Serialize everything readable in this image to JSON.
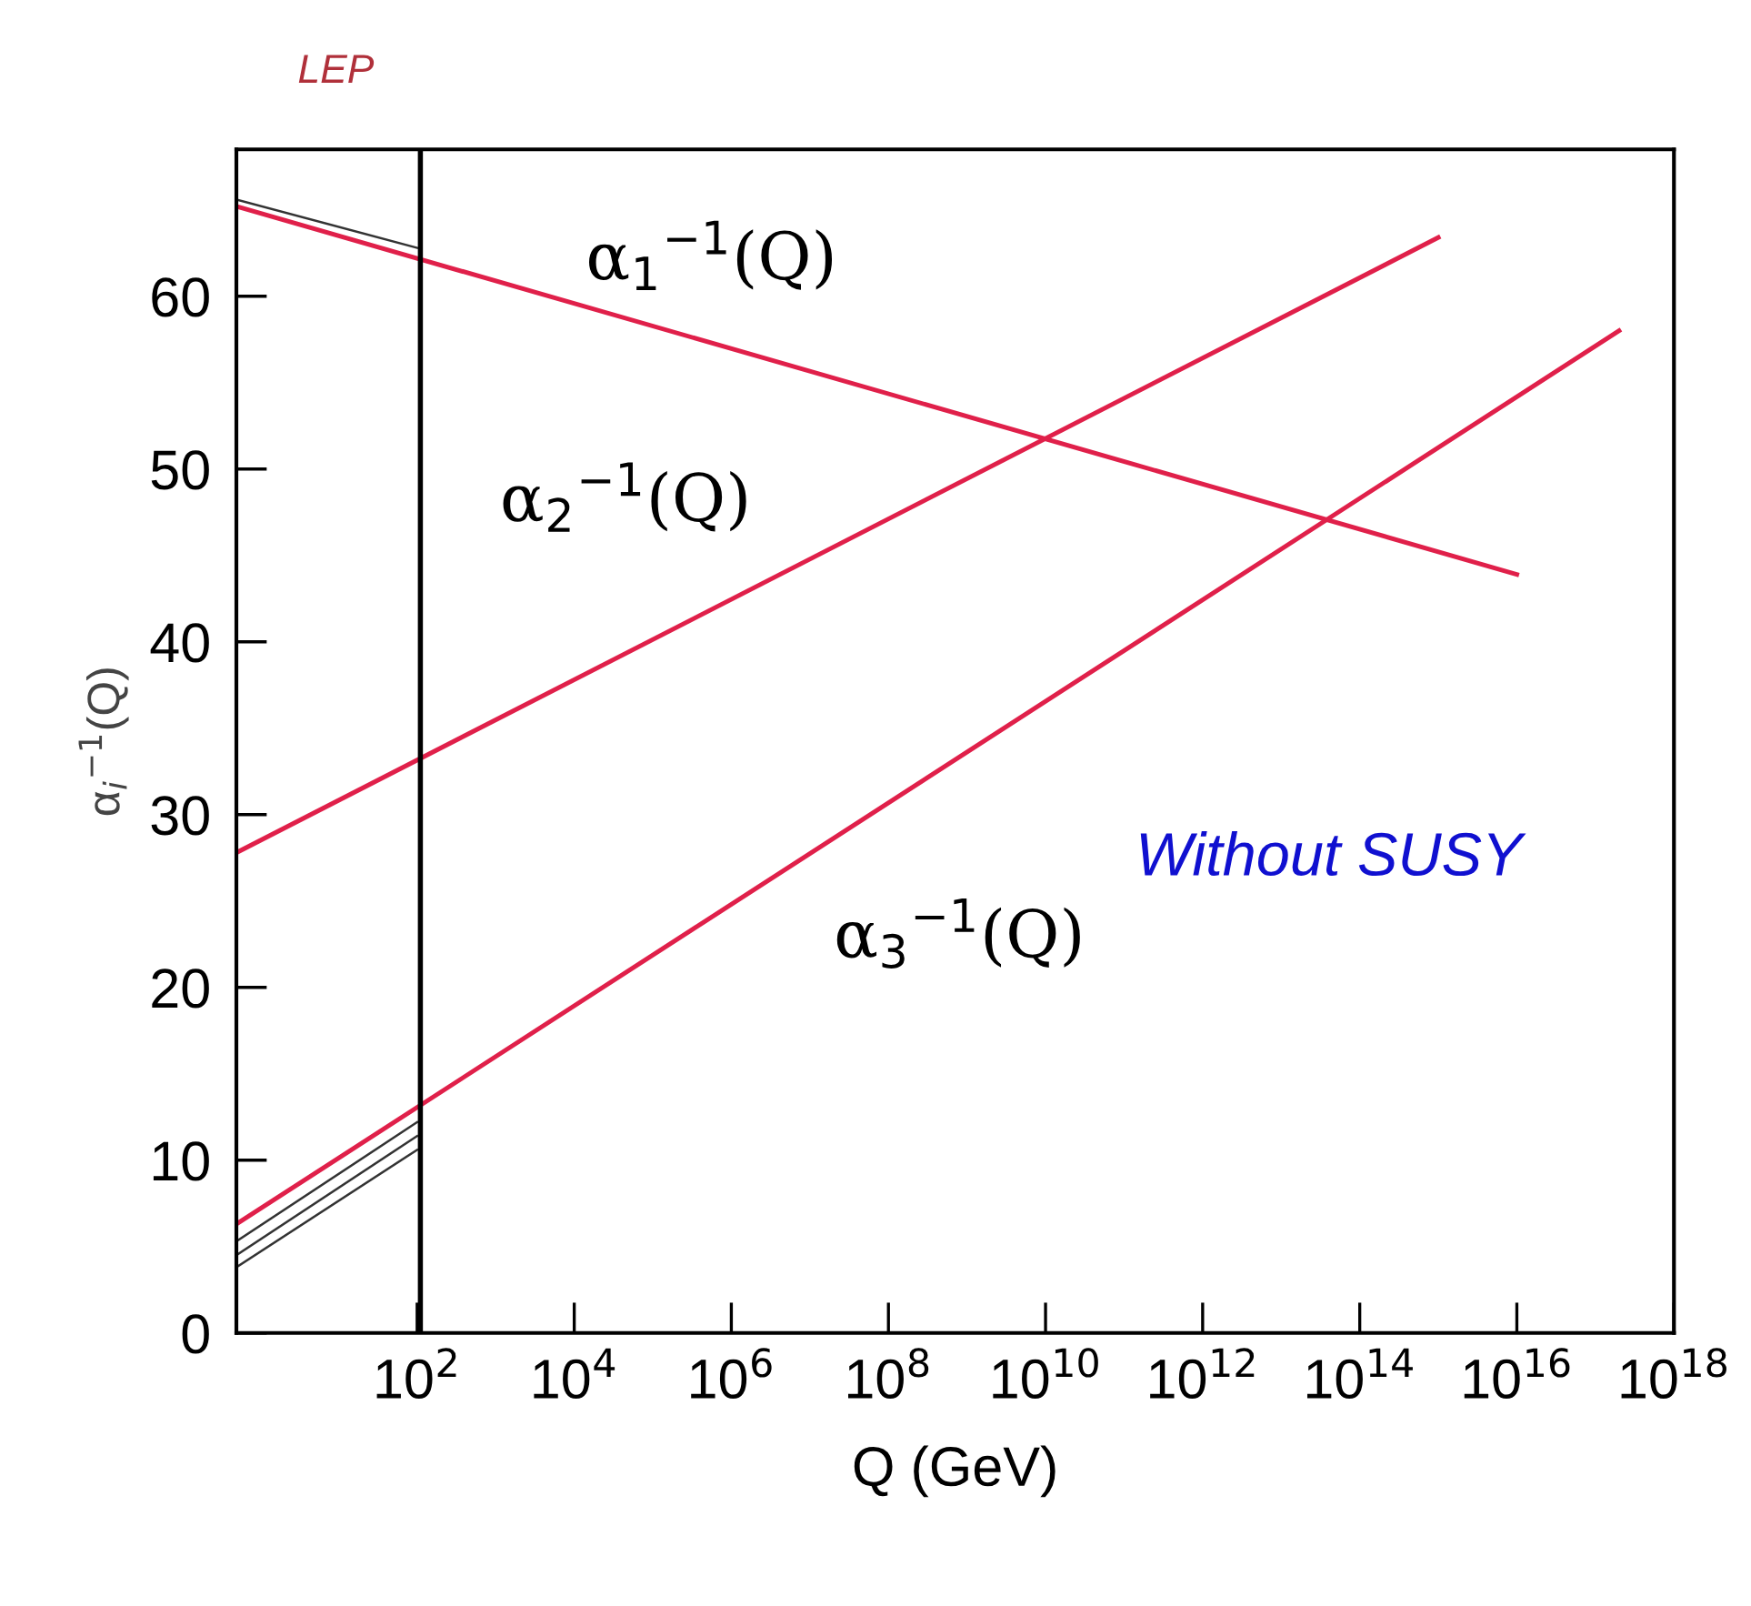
{
  "chart_data": {
    "type": "line",
    "xlabel": "Q (GeV)",
    "ylabel": "α$_{i}$$^{−1}$(Q)",
    "log": "x",
    "xlim": [
      0.5,
      1e+18
    ],
    "ylim": [
      0,
      68.5
    ],
    "xticks": [
      {
        "value": 100.0,
        "label": "10$^{2}$"
      },
      {
        "value": 10000.0,
        "label": "10$^{4}$"
      },
      {
        "value": 1000000.0,
        "label": "10$^{6}$"
      },
      {
        "value": 100000000.0,
        "label": "10$^{8}$"
      },
      {
        "value": 10000000000.0,
        "label": "10$^{10}$"
      },
      {
        "value": 1000000000000.0,
        "label": "10$^{12}$"
      },
      {
        "value": 100000000000000.0,
        "label": "10$^{14}$"
      },
      {
        "value": 1e+16,
        "label": "10$^{16}$"
      },
      {
        "value": 1e+18,
        "label": "10$^{18}$"
      }
    ],
    "yticks": [
      0,
      10,
      20,
      30,
      40,
      50,
      60
    ],
    "grid": false,
    "marker": "none",
    "line_style": "solid",
    "series": [
      {
        "color": "#333333",
        "x": [
          0.5,
          100
        ],
        "values": [
          65.6,
          62.8
        ]
      },
      {
        "color": "#333333",
        "x": [
          0.5,
          100
        ],
        "values": [
          5.3,
          12.2
        ]
      },
      {
        "color": "#333333",
        "x": [
          0.5,
          100
        ],
        "values": [
          4.5,
          11.4
        ]
      },
      {
        "color": "#333333",
        "x": [
          0.5,
          100
        ],
        "values": [
          3.8,
          10.6
        ]
      },
      {
        "name": "α$_{1}$$^{−1}$(Q)",
        "color": "#e0204a",
        "x": [
          0.5,
          1e+16
        ],
        "values": [
          65.2,
          43.9
        ]
      },
      {
        "name": "α$_{2}$$^{−1}$(Q)",
        "color": "#e0204a",
        "x": [
          0.5,
          1000000000000000.0
        ],
        "values": [
          27.8,
          63.4
        ]
      },
      {
        "name": "α$_{3}$$^{−1}$(Q)",
        "color": "#e0204a",
        "x": [
          0.5,
          2e+17
        ],
        "values": [
          6.3,
          58.0
        ]
      }
    ],
    "ref_lines": [
      {
        "axis": "x",
        "value": 110,
        "label": null,
        "color": "#000000"
      }
    ],
    "annotations": [
      "LEP",
      "Without SUSY"
    ]
  }
}
